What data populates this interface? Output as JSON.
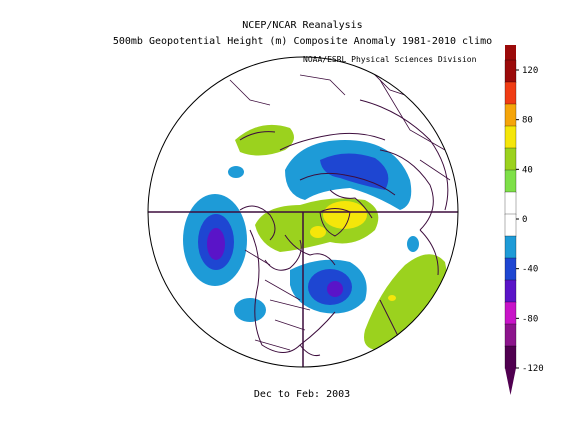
{
  "title_line1": "NCEP/NCAR Reanalysis",
  "title_line2": "500mb Geopotential Height (m) Composite Anomaly 1981-2010 climo",
  "credit": "NOAA/ESRL Physical Sciences Division",
  "footer": "Dec to Feb: 2003",
  "colorbar": {
    "labels": [
      "120",
      "80",
      "40",
      "0",
      "-40",
      "-80",
      "-120"
    ],
    "colors": [
      "#9b0a0a",
      "#f03c14",
      "#f5a50a",
      "#f5e60a",
      "#9bd21e",
      "#7ee048",
      "#ffffff",
      "#ffffff",
      "#1e9bd7",
      "#1e46d2",
      "#5a14c8",
      "#c814c8",
      "#8c148c",
      "#500050"
    ]
  }
}
